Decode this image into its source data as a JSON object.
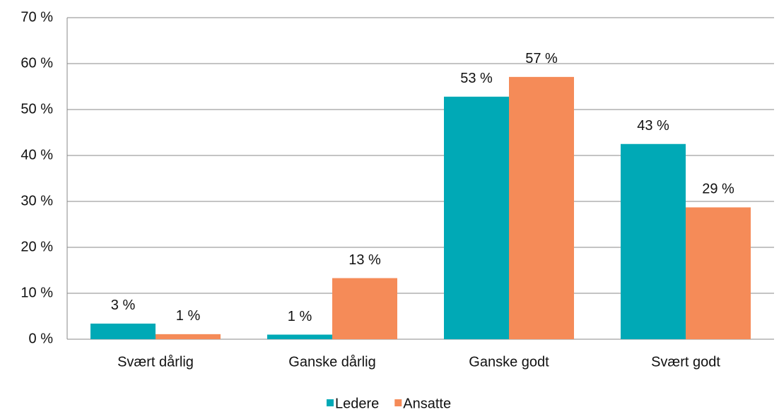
{
  "chart_data": {
    "type": "bar",
    "categories": [
      "Svært dårlig",
      "Ganske dårlig",
      "Ganske godt",
      "Svært godt"
    ],
    "series": [
      {
        "name": "Ledere",
        "color": "#00a9b6",
        "values": [
          3.4,
          1.0,
          52.8,
          42.5
        ],
        "value_labels": [
          "3 %",
          "1 %",
          "53 %",
          "43 %"
        ]
      },
      {
        "name": "Ansatte",
        "color": "#f58b58",
        "values": [
          1.1,
          13.3,
          57.1,
          28.7
        ],
        "value_labels": [
          "1 %",
          "13 %",
          "57 %",
          "29 %"
        ]
      }
    ],
    "ylim": [
      0,
      70
    ],
    "yticks": [
      {
        "value": 0,
        "label": "0 %"
      },
      {
        "value": 10,
        "label": "10 %"
      },
      {
        "value": 20,
        "label": "20 %"
      },
      {
        "value": 30,
        "label": "30 %"
      },
      {
        "value": 40,
        "label": "40 %"
      },
      {
        "value": 50,
        "label": "50 %"
      },
      {
        "value": 60,
        "label": "60 %"
      },
      {
        "value": 70,
        "label": "70 %"
      }
    ],
    "grid": true,
    "legend": "bottom"
  }
}
